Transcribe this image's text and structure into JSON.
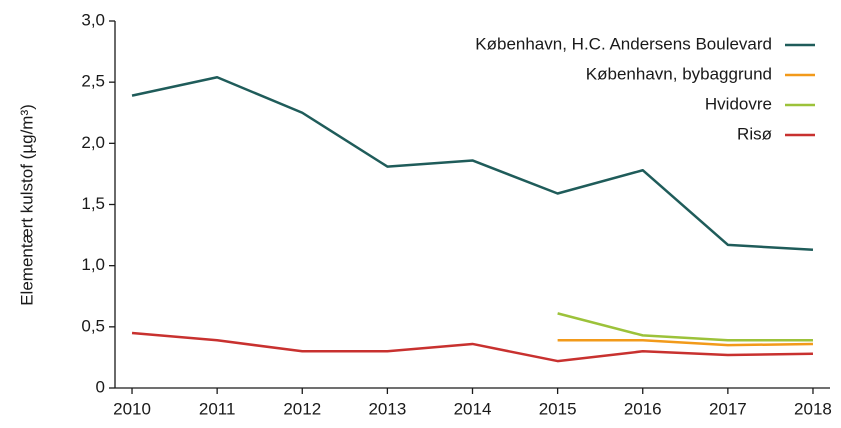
{
  "chart_data": {
    "type": "line",
    "y_label": "Elementært kulstof (µg/m³)",
    "x": [
      2010,
      2011,
      2012,
      2013,
      2014,
      2015,
      2016,
      2017,
      2018
    ],
    "xlim": [
      2009.8,
      2018.2
    ],
    "xticks": [
      2010,
      2011,
      2012,
      2013,
      2014,
      2015,
      2016,
      2017,
      2018
    ],
    "ylim": [
      0,
      3
    ],
    "yticks": [
      0,
      {
        "value": 0.5,
        "label": "0,5"
      },
      {
        "value": 1,
        "label": "1,0"
      },
      {
        "value": 1.5,
        "label": "1,5"
      },
      {
        "value": 2,
        "label": "2,0"
      },
      {
        "value": 2.5,
        "label": "2,5"
      },
      {
        "value": 3,
        "label": "3,0"
      }
    ],
    "grid": false,
    "legend": "upper right",
    "series": [
      {
        "name": "København, H.C. Andersens Boulevard",
        "color": "#1f5c5a",
        "values": [
          2.39,
          2.54,
          2.25,
          1.81,
          1.86,
          1.59,
          1.78,
          1.17,
          1.13
        ]
      },
      {
        "name": "København, bybaggrund",
        "color": "#f29a1a",
        "values": [
          null,
          null,
          null,
          null,
          null,
          0.39,
          0.39,
          0.35,
          0.36
        ]
      },
      {
        "name": "Hvidovre",
        "color": "#9cc23a",
        "values": [
          null,
          null,
          null,
          null,
          null,
          0.61,
          0.43,
          0.39,
          0.39
        ]
      },
      {
        "name": "Risø",
        "color": "#c8312f",
        "values": [
          0.45,
          0.39,
          0.3,
          0.3,
          0.36,
          0.22,
          0.3,
          0.27,
          0.28
        ]
      }
    ]
  }
}
